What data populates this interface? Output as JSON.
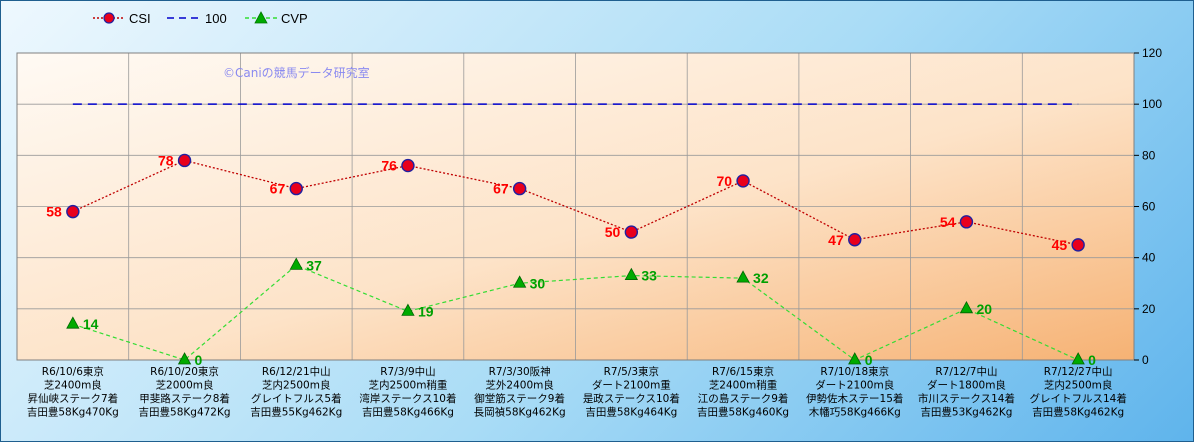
{
  "chart_data": {
    "type": "line",
    "watermark": "©Caniの競馬データ研究室",
    "ylim": [
      0,
      120
    ],
    "yticks": [
      0,
      20,
      40,
      60,
      80,
      100,
      120
    ],
    "grid": true,
    "legend_position": "top-left",
    "categories": [
      [
        "R6/10/6東京",
        "芝2400m良",
        "昇仙峡ステーク7着",
        "吉田豊58Kg470Kg"
      ],
      [
        "R6/10/20東京",
        "芝2000m良",
        "甲斐路ステーク8着",
        "吉田豊58Kg472Kg"
      ],
      [
        "R6/12/21中山",
        "芝内2500m良",
        "グレイトフルス5着",
        "吉田豊55Kg462Kg"
      ],
      [
        "R7/3/9中山",
        "芝内2500m稍重",
        "湾岸ステークス10着",
        "吉田豊58Kg466Kg"
      ],
      [
        "R7/3/30阪神",
        "芝外2400m良",
        "御堂筋ステーク9着",
        "長岡禎58Kg462Kg"
      ],
      [
        "R7/5/3東京",
        "ダート2100m重",
        "是政ステークス10着",
        "吉田豊58Kg464Kg"
      ],
      [
        "R7/6/15東京",
        "芝2400m稍重",
        "江の島ステーク9着",
        "吉田豊58Kg460Kg"
      ],
      [
        "R7/10/18東京",
        "ダート2100m良",
        "伊勢佐木ステー15着",
        "木幡巧58Kg466Kg"
      ],
      [
        "R7/12/7中山",
        "ダート1800m良",
        "市川ステークス14着",
        "吉田豊53Kg462Kg"
      ],
      [
        "R7/12/27中山",
        "芝内2500m良",
        "グレイトフルス14着",
        "吉田豊58Kg462Kg"
      ]
    ],
    "series": [
      {
        "name": "CSI",
        "values": [
          58,
          78,
          67,
          76,
          67,
          50,
          70,
          47,
          54,
          45
        ],
        "color": "#c00000",
        "marker_color": "#e8001c",
        "style": "dotted",
        "marker": "circle"
      },
      {
        "name": "100",
        "values": [
          100,
          100,
          100,
          100,
          100,
          100,
          100,
          100,
          100,
          100
        ],
        "color": "#0000cc",
        "style": "dashed",
        "marker": "none"
      },
      {
        "name": "CVP",
        "values": [
          14,
          0,
          37,
          19,
          30,
          33,
          32,
          0,
          20,
          0
        ],
        "color": "#33dd33",
        "marker_color": "#00aa00",
        "style": "dashed",
        "marker": "triangle"
      }
    ]
  }
}
